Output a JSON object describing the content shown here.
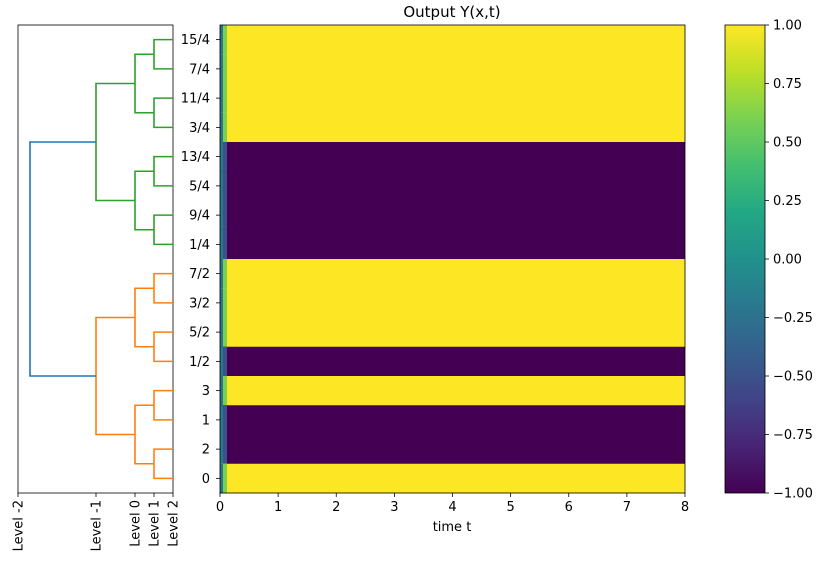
{
  "chart_data": [
    {
      "type": "dendrogram",
      "leaves_top_to_bottom": [
        "15/4",
        "7/4",
        "11/4",
        "3/4",
        "13/4",
        "5/4",
        "9/4",
        "1/4",
        "7/2",
        "3/2",
        "5/2",
        "1/2",
        "3",
        "1",
        "2",
        "0"
      ],
      "xlabels": [
        "Level -2",
        "Level -1",
        "Level 0",
        "Level 1",
        "Level 2"
      ],
      "xvalues": [
        -2,
        -1,
        0,
        1,
        2
      ],
      "cluster_colors": [
        "#2ca02c",
        "#ff7f0e",
        "#1f77b4"
      ]
    },
    {
      "type": "heatmap",
      "title": "Output Y(x,t)",
      "xlabel": "time t",
      "xlim": [
        0,
        8
      ],
      "xticks": [
        "0",
        "1",
        "2",
        "3",
        "4",
        "5",
        "6",
        "7",
        "8"
      ],
      "rows_top_to_bottom": [
        {
          "label": "15/4",
          "value": 1.0
        },
        {
          "label": "7/4",
          "value": 1.0
        },
        {
          "label": "11/4",
          "value": 1.0
        },
        {
          "label": "3/4",
          "value": 1.0
        },
        {
          "label": "13/4",
          "value": -1.0
        },
        {
          "label": "5/4",
          "value": -1.0
        },
        {
          "label": "9/4",
          "value": -1.0
        },
        {
          "label": "1/4",
          "value": -1.0
        },
        {
          "label": "7/2",
          "value": 1.0
        },
        {
          "label": "3/2",
          "value": 1.0
        },
        {
          "label": "5/2",
          "value": 1.0
        },
        {
          "label": "1/2",
          "value": -1.0
        },
        {
          "label": "3",
          "value": 1.0
        },
        {
          "label": "1",
          "value": -1.0
        },
        {
          "label": "2",
          "value": -1.0
        },
        {
          "label": "0",
          "value": 1.0
        }
      ],
      "colorbar": {
        "colormap": "viridis",
        "range": [
          -1.0,
          1.0
        ],
        "ticks": [
          "1.00",
          "0.75",
          "0.50",
          "0.25",
          "0.00",
          "−0.25",
          "−0.50",
          "−0.75",
          "−1.00"
        ]
      }
    }
  ]
}
